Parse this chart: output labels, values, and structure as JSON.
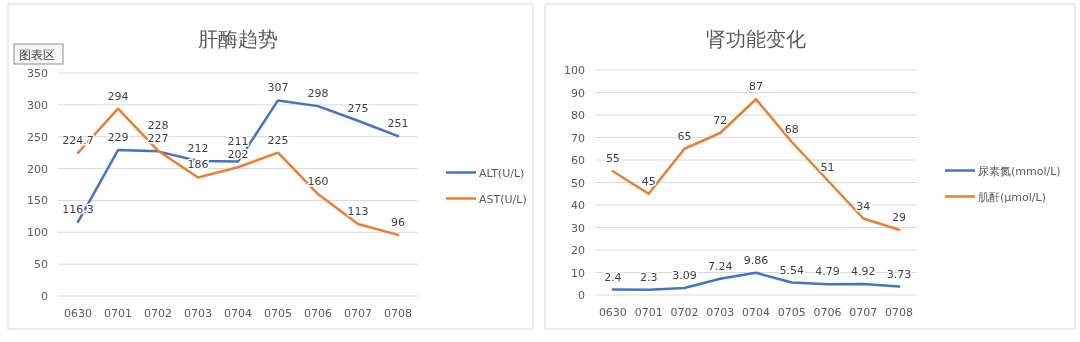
{
  "chart_data": [
    {
      "type": "line",
      "title": "肝酶趋势",
      "categories": [
        "0630",
        "0701",
        "0702",
        "0703",
        "0704",
        "0705",
        "0706",
        "0707",
        "0708"
      ],
      "series": [
        {
          "name": "ALT(U/L)",
          "color": "#4472c4",
          "values": [
            116.3,
            229,
            227,
            212,
            211,
            307,
            298,
            275,
            251
          ]
        },
        {
          "name": "AST(U/L)",
          "color": "#ed7d31",
          "values": [
            224.7,
            294,
            228,
            186,
            202,
            225,
            160,
            113,
            96
          ]
        }
      ],
      "ylim": [
        0,
        350
      ],
      "yticks": [
        0,
        50,
        100,
        150,
        200,
        250,
        300,
        350
      ],
      "grid": "y",
      "legend": "right",
      "data_labels": true,
      "marker": "none",
      "line_style": "solid",
      "annotations": [
        "图表区"
      ]
    },
    {
      "type": "line",
      "title": "肾功能变化",
      "categories": [
        "0630",
        "0701",
        "0702",
        "0703",
        "0704",
        "0705",
        "0706",
        "0707",
        "0708"
      ],
      "series": [
        {
          "name": "尿素氮(mmol/L)",
          "color": "#4472c4",
          "values": [
            2.4,
            2.3,
            3.09,
            7.24,
            9.86,
            5.54,
            4.79,
            4.92,
            3.73
          ]
        },
        {
          "name": "肌酐(μmol/L)",
          "color": "#ed7d31",
          "values": [
            55,
            45,
            65,
            72,
            87,
            68,
            51,
            34,
            29
          ]
        }
      ],
      "ylim": [
        0,
        100
      ],
      "yticks": [
        0,
        10,
        20,
        30,
        40,
        50,
        60,
        70,
        80,
        90,
        100
      ],
      "grid": "y",
      "legend": "right",
      "data_labels": true,
      "marker": "none",
      "line_style": "solid"
    }
  ]
}
